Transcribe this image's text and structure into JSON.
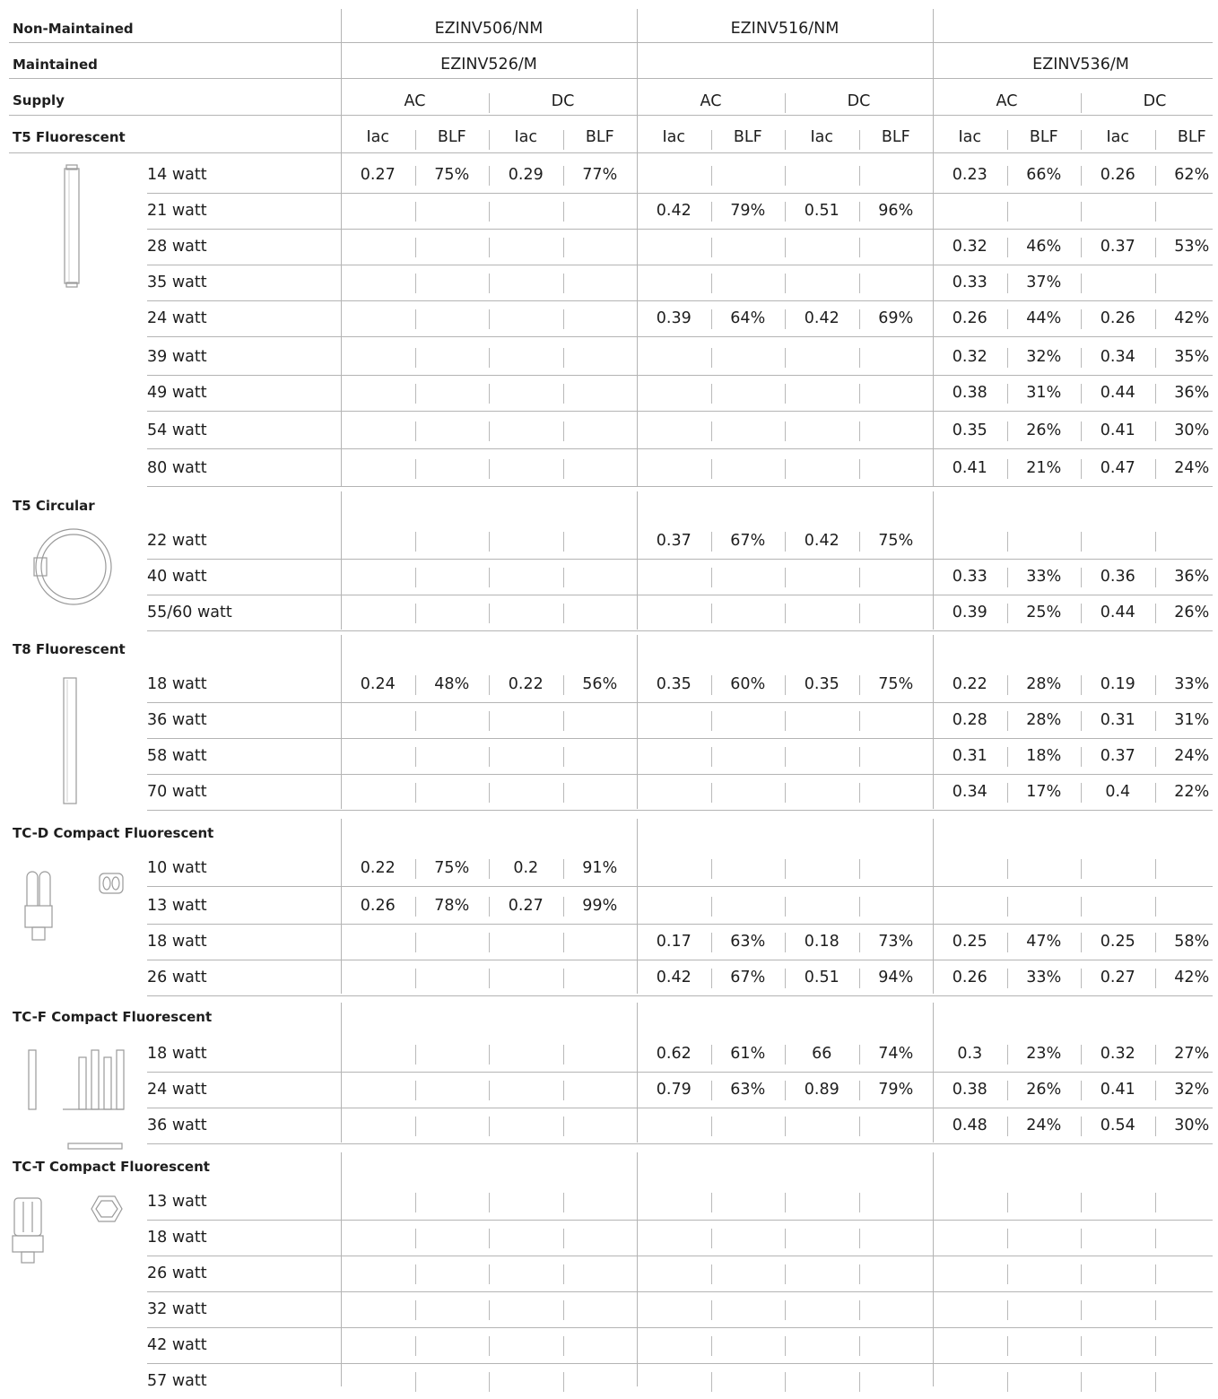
{
  "header": {
    "non_maintained": {
      "label": "Non-Maintained",
      "products": [
        "EZINV506/NM",
        "EZINV516/NM",
        ""
      ]
    },
    "maintained": {
      "label": "Maintained",
      "products": [
        "EZINV526/M",
        "",
        "EZINV536/M"
      ]
    },
    "supply": {
      "label": "Supply",
      "values": [
        "AC",
        "DC",
        "AC",
        "DC",
        "AC",
        "DC"
      ]
    },
    "columns": [
      "Iac",
      "BLF",
      "Iac",
      "BLF",
      "Iac",
      "BLF",
      "Iac",
      "BLF",
      "Iac",
      "BLF",
      "Iac",
      "BLF"
    ]
  },
  "sections": [
    {
      "title": "T5 Fluorescent",
      "icon": "t5-tube-icon",
      "rows": [
        {
          "watt": "14 watt",
          "values": [
            "0.27",
            "75%",
            "0.29",
            "77%",
            "",
            "",
            "",
            "",
            "0.23",
            "66%",
            "0.26",
            "62%"
          ]
        },
        {
          "watt": "21 watt",
          "values": [
            "",
            "",
            "",
            "",
            "0.42",
            "79%",
            "0.51",
            "96%",
            "",
            "",
            "",
            ""
          ]
        },
        {
          "watt": "28 watt",
          "values": [
            "",
            "",
            "",
            "",
            "",
            "",
            "",
            "",
            "0.32",
            "46%",
            "0.37",
            "53%"
          ]
        },
        {
          "watt": "35 watt",
          "values": [
            "",
            "",
            "",
            "",
            "",
            "",
            "",
            "",
            "0.33",
            "37%",
            "",
            ""
          ]
        },
        {
          "watt": "24 watt",
          "values": [
            "",
            "",
            "",
            "",
            "0.39",
            "64%",
            "0.42",
            "69%",
            "0.26",
            "44%",
            "0.26",
            "42%"
          ]
        },
        {
          "watt": "39 watt",
          "values": [
            "",
            "",
            "",
            "",
            "",
            "",
            "",
            "",
            "0.32",
            "32%",
            "0.34",
            "35%"
          ]
        },
        {
          "watt": "49 watt",
          "values": [
            "",
            "",
            "",
            "",
            "",
            "",
            "",
            "",
            "0.38",
            "31%",
            "0.44",
            "36%"
          ]
        },
        {
          "watt": "54 watt",
          "values": [
            "",
            "",
            "",
            "",
            "",
            "",
            "",
            "",
            "0.35",
            "26%",
            "0.41",
            "30%"
          ]
        },
        {
          "watt": "80 watt",
          "values": [
            "",
            "",
            "",
            "",
            "",
            "",
            "",
            "",
            "0.41",
            "21%",
            "0.47",
            "24%"
          ]
        }
      ]
    },
    {
      "title": "T5 Circular",
      "icon": "circular-tube-icon",
      "rows": [
        {
          "watt": "22 watt",
          "values": [
            "",
            "",
            "",
            "",
            "0.37",
            "67%",
            "0.42",
            "75%",
            "",
            "",
            "",
            ""
          ]
        },
        {
          "watt": "40 watt",
          "values": [
            "",
            "",
            "",
            "",
            "",
            "",
            "",
            "",
            "0.33",
            "33%",
            "0.36",
            "36%"
          ]
        },
        {
          "watt": "55/60 watt",
          "values": [
            "",
            "",
            "",
            "",
            "",
            "",
            "",
            "",
            "0.39",
            "25%",
            "0.44",
            "26%"
          ]
        }
      ]
    },
    {
      "title": "T8 Fluorescent",
      "icon": "t8-tube-icon",
      "rows": [
        {
          "watt": "18 watt",
          "values": [
            "0.24",
            "48%",
            "0.22",
            "56%",
            "0.35",
            "60%",
            "0.35",
            "75%",
            "0.22",
            "28%",
            "0.19",
            "33%"
          ]
        },
        {
          "watt": "36 watt",
          "values": [
            "",
            "",
            "",
            "",
            "",
            "",
            "",
            "",
            "0.28",
            "28%",
            "0.31",
            "31%"
          ]
        },
        {
          "watt": "58 watt",
          "values": [
            "",
            "",
            "",
            "",
            "",
            "",
            "",
            "",
            "0.31",
            "18%",
            "0.37",
            "24%"
          ]
        },
        {
          "watt": "70 watt",
          "values": [
            "",
            "",
            "",
            "",
            "",
            "",
            "",
            "",
            "0.34",
            "17%",
            "0.4",
            "22%"
          ]
        }
      ]
    },
    {
      "title": "TC-D Compact Fluorescent",
      "icon": "tc-d-lamp-icon",
      "rows": [
        {
          "watt": "10 watt",
          "values": [
            "0.22",
            "75%",
            "0.2",
            "91%",
            "",
            "",
            "",
            "",
            "",
            "",
            "",
            ""
          ]
        },
        {
          "watt": "13 watt",
          "values": [
            "0.26",
            "78%",
            "0.27",
            "99%",
            "",
            "",
            "",
            "",
            "",
            "",
            "",
            ""
          ]
        },
        {
          "watt": "18 watt",
          "values": [
            "",
            "",
            "",
            "",
            "0.17",
            "63%",
            "0.18",
            "73%",
            "0.25",
            "47%",
            "0.25",
            "58%"
          ]
        },
        {
          "watt": "26 watt",
          "values": [
            "",
            "",
            "",
            "",
            "0.42",
            "67%",
            "0.51",
            "94%",
            "0.26",
            "33%",
            "0.27",
            "42%"
          ]
        }
      ]
    },
    {
      "title": "TC-F Compact Fluorescent",
      "icon": "tc-f-lamp-icon",
      "rows": [
        {
          "watt": "18 watt",
          "values": [
            "",
            "",
            "",
            "",
            "0.62",
            "61%",
            "66",
            "74%",
            "0.3",
            "23%",
            "0.32",
            "27%"
          ]
        },
        {
          "watt": "24 watt",
          "values": [
            "",
            "",
            "",
            "",
            "0.79",
            "63%",
            "0.89",
            "79%",
            "0.38",
            "26%",
            "0.41",
            "32%"
          ]
        },
        {
          "watt": "36 watt",
          "values": [
            "",
            "",
            "",
            "",
            "",
            "",
            "",
            "",
            "0.48",
            "24%",
            "0.54",
            "30%"
          ]
        }
      ]
    },
    {
      "title": "TC-T Compact Fluorescent",
      "icon": "tc-t-lamp-icon",
      "rows": [
        {
          "watt": "13 watt",
          "values": [
            "",
            "",
            "",
            "",
            "",
            "",
            "",
            "",
            "",
            "",
            "",
            ""
          ]
        },
        {
          "watt": "18 watt",
          "values": [
            "",
            "",
            "",
            "",
            "",
            "",
            "",
            "",
            "",
            "",
            "",
            ""
          ]
        },
        {
          "watt": "26 watt",
          "values": [
            "",
            "",
            "",
            "",
            "",
            "",
            "",
            "",
            "",
            "",
            "",
            ""
          ]
        },
        {
          "watt": "32 watt",
          "values": [
            "",
            "",
            "",
            "",
            "",
            "",
            "",
            "",
            "",
            "",
            "",
            ""
          ]
        },
        {
          "watt": "42 watt",
          "values": [
            "",
            "",
            "",
            "",
            "",
            "",
            "",
            "",
            "",
            "",
            "",
            ""
          ]
        },
        {
          "watt": "57 watt",
          "values": [
            "",
            "",
            "",
            "",
            "",
            "",
            "",
            "",
            "",
            "",
            "",
            ""
          ]
        }
      ]
    }
  ]
}
